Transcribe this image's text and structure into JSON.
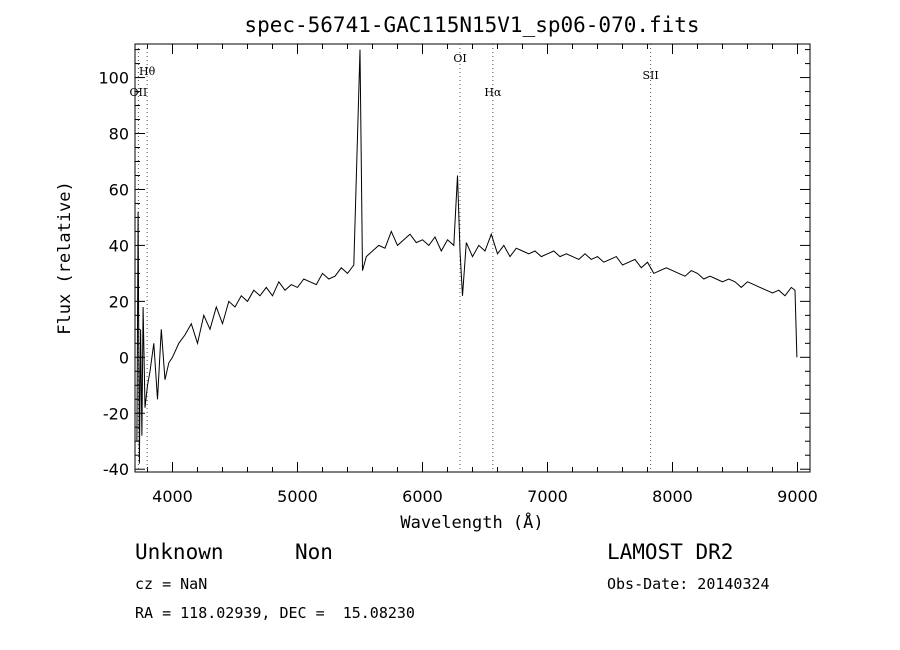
{
  "chart_data": {
    "type": "line",
    "title": "spec-56741-GAC115N15V1_sp06-070.fits",
    "xlabel": "Wavelength (Å)",
    "ylabel": "Flux (relative)",
    "xlim": [
      3700,
      9100
    ],
    "ylim": [
      -41,
      112
    ],
    "xticks": [
      4000,
      5000,
      6000,
      7000,
      8000,
      9000
    ],
    "yticks": [
      -40,
      -20,
      0,
      20,
      40,
      60,
      80,
      100
    ],
    "grid": false,
    "series": [
      {
        "x": [
          3715,
          3725,
          3735,
          3745,
          3755,
          3765,
          3780,
          3800,
          3820,
          3850,
          3880,
          3910,
          3940,
          3970,
          4000,
          4050,
          4100,
          4150,
          4200,
          4250,
          4300,
          4350,
          4400,
          4450,
          4500,
          4550,
          4600,
          4650,
          4700,
          4750,
          4800,
          4850,
          4900,
          4950,
          5000,
          5050,
          5100,
          5150,
          5200,
          5250,
          5300,
          5350,
          5400,
          5450,
          5500,
          5520,
          5550,
          5600,
          5650,
          5700,
          5750,
          5800,
          5850,
          5900,
          5950,
          6000,
          6050,
          6100,
          6150,
          6200,
          6250,
          6280,
          6300,
          6320,
          6350,
          6400,
          6450,
          6500,
          6550,
          6600,
          6650,
          6700,
          6750,
          6800,
          6850,
          6900,
          6950,
          7000,
          7050,
          7100,
          7150,
          7200,
          7250,
          7300,
          7350,
          7400,
          7450,
          7500,
          7550,
          7600,
          7650,
          7700,
          7750,
          7800,
          7850,
          7900,
          7950,
          8000,
          8050,
          8100,
          8150,
          8200,
          8250,
          8300,
          8350,
          8400,
          8450,
          8500,
          8550,
          8600,
          8650,
          8700,
          8750,
          8800,
          8850,
          8900,
          8950,
          8980,
          8995
        ],
        "y": [
          -30,
          52,
          -38,
          10,
          -28,
          18,
          -18,
          -10,
          -5,
          5,
          -15,
          10,
          -8,
          -2,
          0,
          5,
          8,
          12,
          5,
          15,
          10,
          18,
          12,
          20,
          18,
          22,
          20,
          24,
          22,
          25,
          22,
          27,
          24,
          26,
          25,
          28,
          27,
          26,
          30,
          28,
          29,
          32,
          30,
          33,
          110,
          31,
          36,
          38,
          40,
          39,
          45,
          40,
          42,
          44,
          41,
          42,
          40,
          43,
          38,
          42,
          40,
          65,
          38,
          22,
          41,
          36,
          40,
          38,
          44,
          37,
          40,
          36,
          39,
          38,
          37,
          38,
          36,
          37,
          38,
          36,
          37,
          36,
          35,
          37,
          35,
          36,
          34,
          35,
          36,
          33,
          34,
          35,
          32,
          34,
          30,
          31,
          32,
          31,
          30,
          29,
          31,
          30,
          28,
          29,
          28,
          27,
          28,
          27,
          25,
          27,
          26,
          25,
          24,
          23,
          24,
          22,
          25,
          24,
          0
        ]
      }
    ],
    "lines": [
      {
        "label": "Hθ",
        "x": 3797
      },
      {
        "label": "OII",
        "x": 3727
      },
      {
        "label": "OI",
        "x": 6300
      },
      {
        "label": "Hα",
        "x": 6563
      },
      {
        "label": "SII",
        "x": 7825
      }
    ]
  },
  "info": {
    "object_class": "Unknown",
    "subclass": "Non",
    "survey": "LAMOST DR2",
    "cz": "cz = NaN",
    "obs_date": "Obs-Date: 20140324",
    "coords": "RA = 118.02939, DEC =  15.08230"
  }
}
